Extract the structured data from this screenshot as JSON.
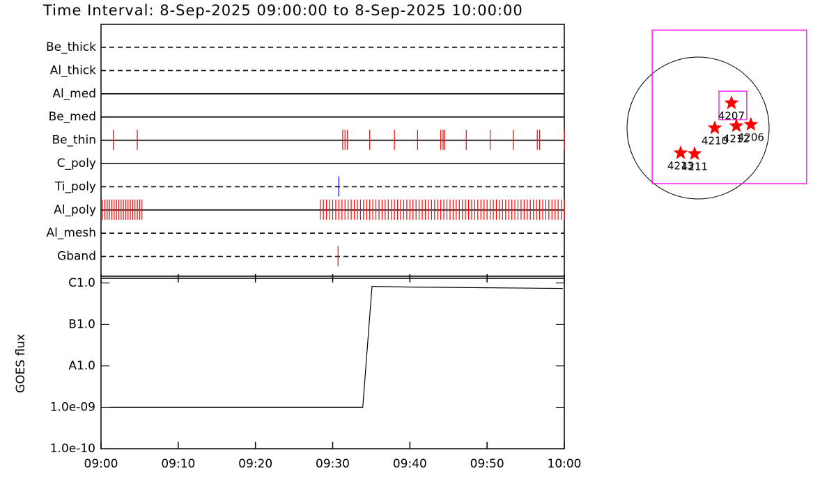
{
  "title": "Time Interval:  8-Sep-2025 09:00:00 to  8-Sep-2025 10:00:00",
  "chart_data": [
    {
      "type": "raster",
      "xlim": [
        0,
        60
      ],
      "rows": [
        {
          "name": "Be_thick",
          "style": "dashed",
          "color": "#ff0000",
          "events": []
        },
        {
          "name": "Al_thick",
          "style": "dashed",
          "color": "#ff0000",
          "events": []
        },
        {
          "name": "Al_med",
          "style": "solid",
          "color": "#ff0000",
          "events": []
        },
        {
          "name": "Be_med",
          "style": "solid",
          "color": "#ff0000",
          "events": []
        },
        {
          "name": "Be_thin",
          "style": "solid",
          "color": "#ff0000",
          "events": [
            1.6,
            4.7,
            31.3,
            31.6,
            31.9,
            34.8,
            38.0,
            41.0,
            44.0,
            44.3,
            44.5,
            47.3,
            50.4,
            53.4,
            56.5,
            56.8,
            60.0
          ]
        },
        {
          "name": "C_poly",
          "style": "solid",
          "color": "#ff0000",
          "events": []
        },
        {
          "name": "Ti_poly",
          "style": "dashed",
          "color": "#0000cc",
          "events": [
            30.8
          ]
        },
        {
          "name": "Al_poly",
          "style": "solid",
          "color": "#ff0000",
          "events": [
            0.2,
            0.5,
            0.8,
            1.1,
            1.4,
            1.7,
            2.0,
            2.3,
            2.6,
            2.9,
            3.2,
            3.5,
            3.8,
            4.1,
            4.4,
            4.7,
            5.0,
            5.3,
            28.4,
            28.8,
            29.2,
            29.6,
            30.0,
            30.4,
            30.8,
            31.2,
            31.6,
            32.0,
            32.4,
            32.8,
            33.2,
            33.6,
            34.0,
            34.4,
            34.8,
            35.2,
            35.6,
            36.0,
            36.4,
            36.8,
            37.2,
            37.6,
            38.0,
            38.4,
            38.8,
            39.2,
            39.6,
            40.0,
            40.4,
            40.8,
            41.2,
            41.6,
            42.0,
            42.4,
            42.8,
            43.2,
            43.6,
            44.0,
            44.4,
            44.8,
            45.2,
            45.6,
            46.0,
            46.4,
            46.8,
            47.2,
            47.6,
            48.0,
            48.4,
            48.8,
            49.2,
            49.6,
            50.0,
            50.4,
            50.8,
            51.2,
            51.6,
            52.0,
            52.4,
            52.8,
            53.2,
            53.6,
            54.0,
            54.4,
            54.8,
            55.2,
            55.6,
            56.0,
            56.4,
            56.8,
            57.2,
            57.6,
            58.0,
            58.4,
            58.8,
            59.2,
            59.6,
            60.0
          ]
        },
        {
          "name": "Al_mesh",
          "style": "dashed",
          "color": "#ff0000",
          "events": []
        },
        {
          "name": "Gband",
          "style": "dashed",
          "color": "#ff0000",
          "events": [
            30.7
          ]
        }
      ]
    },
    {
      "type": "line",
      "ylabel": "GOES flux",
      "log_scale": true,
      "color": "#000000",
      "xlim": [
        0,
        60
      ],
      "xticks": [
        {
          "value": 0,
          "label": "09:00"
        },
        {
          "value": 10,
          "label": "09:10"
        },
        {
          "value": 20,
          "label": "09:20"
        },
        {
          "value": 30,
          "label": "09:30"
        },
        {
          "value": 40,
          "label": "09:40"
        },
        {
          "value": 50,
          "label": "09:50"
        },
        {
          "value": 60,
          "label": "10:00"
        }
      ],
      "ylim": [
        1e-10,
        1.3e-06
      ],
      "yticks": [
        {
          "value": 1e-10,
          "label": "1.0e-10"
        },
        {
          "value": 1e-09,
          "label": "1.0e-09"
        },
        {
          "value": 1e-08,
          "label": "A1.0"
        },
        {
          "value": 1e-07,
          "label": "B1.0"
        },
        {
          "value": 1e-06,
          "label": "C1.0"
        }
      ],
      "x": [
        1.1,
        33.9,
        35.1,
        40,
        59.8
      ],
      "values": [
        1e-09,
        1e-09,
        8.3e-07,
        8e-07,
        7.4e-07
      ]
    },
    {
      "type": "map",
      "radius": 960,
      "box_color": "#ff00ff",
      "star_color": "#ff0000",
      "boxes": [
        [
          -620,
          1466,
          -752,
          1325
        ],
        [
          282,
          658,
          113,
          498
        ]
      ],
      "points": [
        {
          "label": "4207",
          "x": 451,
          "y": 338
        },
        {
          "label": "4210",
          "x": 226,
          "y": 0
        },
        {
          "label": "4212",
          "x": 517,
          "y": 28
        },
        {
          "label": "4206",
          "x": 714,
          "y": 47
        },
        {
          "label": "4213",
          "x": -235,
          "y": -338
        },
        {
          "label": "4211",
          "x": -47,
          "y": -348
        }
      ]
    }
  ]
}
